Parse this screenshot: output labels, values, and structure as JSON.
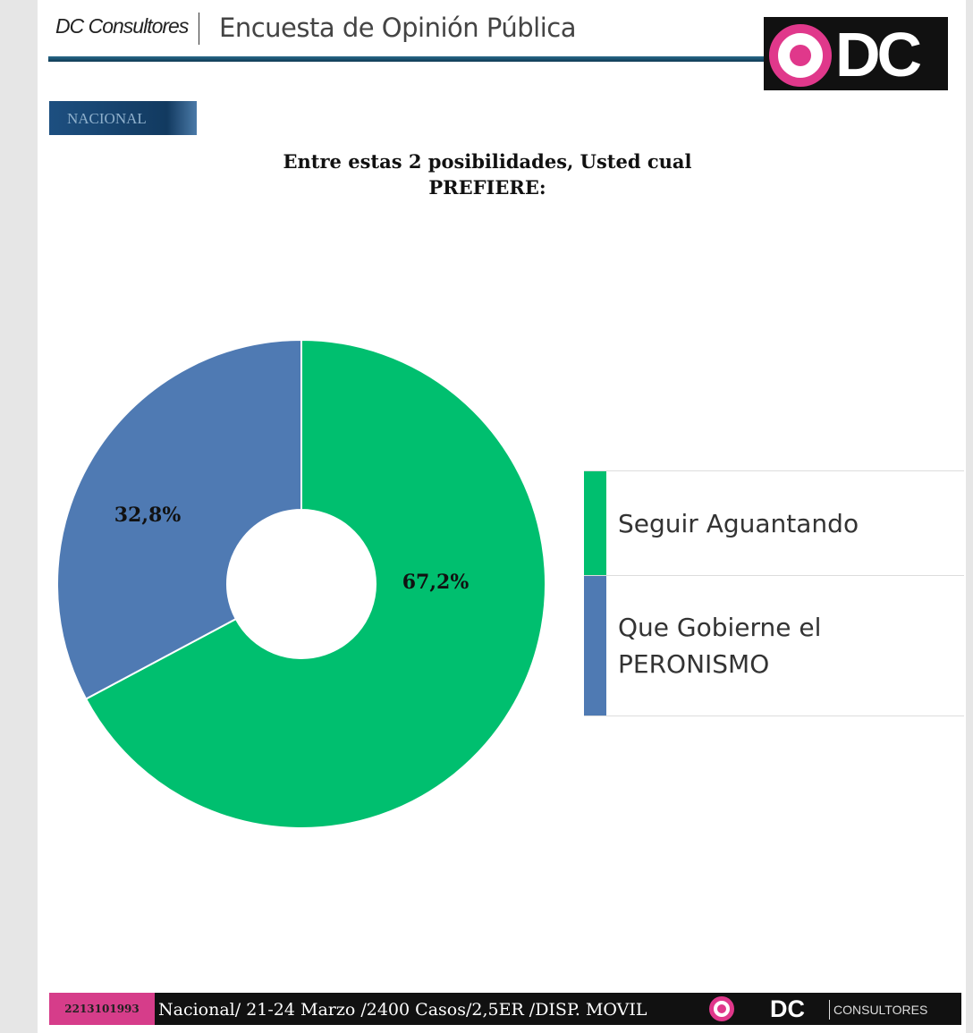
{
  "header": {
    "brand": "DC Consultores",
    "survey_title": "Encuesta de Opinión Pública",
    "logo_text": "DC",
    "scope_badge": "NACIONAL"
  },
  "chart_data": {
    "type": "pie",
    "donut": true,
    "title": "Entre estas 2 posibilidades, Usted cual PREFIERE:",
    "title_line1": "Entre estas 2 posibilidades, Usted cual",
    "title_line2": "PREFIERE:",
    "categories": [
      "Seguir Aguantando",
      "Que Gobierne el PERONISMO"
    ],
    "legend_lines": [
      [
        "Seguir Aguantando"
      ],
      [
        "Que Gobierne el",
        "PERONISMO"
      ]
    ],
    "values": [
      67.2,
      32.8
    ],
    "data_labels": [
      "67,2%",
      "32,8%"
    ],
    "colors": [
      "#00bf6f",
      "#4f7ab3"
    ],
    "legend_placement": "right"
  },
  "footer": {
    "phone": "2213101993",
    "info": "Nacional/ 21-24 Marzo /2400 Casos/2,5ER /DISP. MOVIL",
    "logo_text": "DC",
    "logo_sub": "CONSULTORES"
  }
}
